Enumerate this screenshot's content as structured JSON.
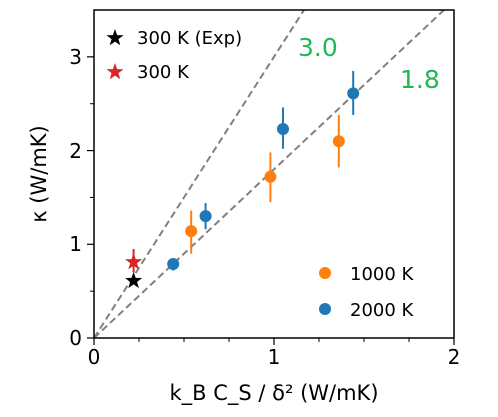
{
  "chart_data": {
    "type": "scatter",
    "x_label": "k_B C_S / δ² (W/mK)",
    "y_label": "κ (W/mK)",
    "xlim": [
      0,
      2
    ],
    "ylim": [
      0,
      3.5
    ],
    "x_ticks": [
      "0",
      "1",
      "2"
    ],
    "y_ticks": [
      "0",
      "1",
      "2",
      "3"
    ],
    "grid": false,
    "colors": {
      "t1000": "#ff7f0e",
      "t2000": "#1f77b4",
      "exp": "#000000",
      "sim300": "#d62728",
      "slope_text": "#1db954",
      "guide": "#808080"
    },
    "series": [
      {
        "name": "300 K (Exp)",
        "key": "exp",
        "marker": "star",
        "legend_loc": "top-left",
        "points": [
          {
            "x": 0.22,
            "y": 0.61
          }
        ]
      },
      {
        "name": "300 K",
        "key": "sim300",
        "marker": "star",
        "legend_loc": "top-left",
        "points": [
          {
            "x": 0.22,
            "y": 0.81,
            "ylo": 0.7,
            "yhi": 0.95
          }
        ]
      },
      {
        "name": "1000 K",
        "key": "t1000",
        "marker": "circle",
        "legend_loc": "bottom-right",
        "points": [
          {
            "x": 0.54,
            "y": 1.14,
            "ylo": 0.9,
            "yhi": 1.36
          },
          {
            "x": 0.98,
            "y": 1.72,
            "ylo": 1.45,
            "yhi": 1.98
          },
          {
            "x": 1.36,
            "y": 2.1,
            "ylo": 1.82,
            "yhi": 2.38
          }
        ]
      },
      {
        "name": "2000 K",
        "key": "t2000",
        "marker": "circle",
        "legend_loc": "bottom-right",
        "points": [
          {
            "x": 0.44,
            "y": 0.79,
            "ylo": 0.72,
            "yhi": 0.85
          },
          {
            "x": 0.62,
            "y": 1.3,
            "ylo": 1.16,
            "yhi": 1.44
          },
          {
            "x": 1.05,
            "y": 2.23,
            "ylo": 2.02,
            "yhi": 2.46
          },
          {
            "x": 1.44,
            "y": 2.61,
            "ylo": 2.38,
            "yhi": 2.85
          }
        ]
      }
    ],
    "guide_lines": [
      {
        "slope": 3.0,
        "label": "3.0"
      },
      {
        "slope": 1.8,
        "label": "1.8"
      }
    ]
  }
}
